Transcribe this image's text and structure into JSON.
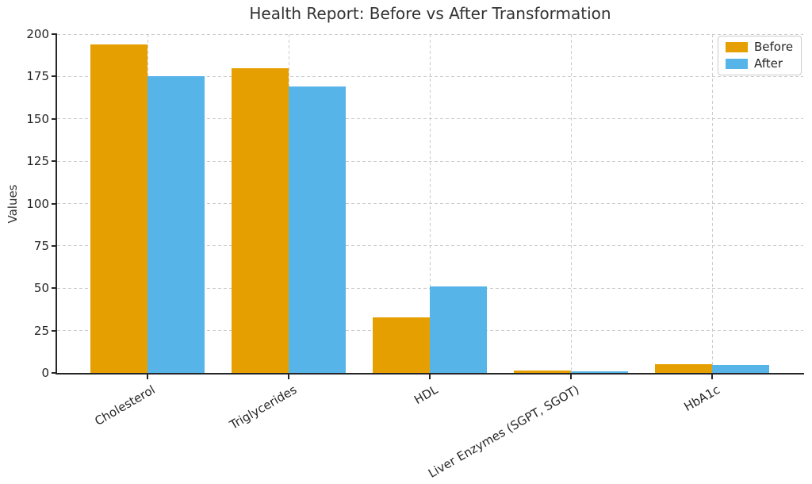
{
  "chart_data": {
    "type": "bar",
    "title": "Health Report: Before vs After Transformation",
    "xlabel": "",
    "ylabel": "Values",
    "categories": [
      "Cholesterol",
      "Triglycerides",
      "HDL",
      "Liver Enzymes (SGPT, SGOT)",
      "HbA1c"
    ],
    "series": [
      {
        "name": "Before",
        "color": "#E69F00",
        "values": [
          194,
          180,
          33,
          1.2,
          5.0
        ]
      },
      {
        "name": "After",
        "color": "#56B4E9",
        "values": [
          175,
          169,
          51,
          0.8,
          4.5
        ]
      }
    ],
    "ylim": [
      0,
      200
    ],
    "yticks": [
      0,
      25,
      50,
      75,
      100,
      125,
      150,
      175,
      200
    ],
    "grid": true,
    "grid_style": "dashed",
    "legend_position": "upper right",
    "colors": {
      "before": "#E69F00",
      "after": "#56B4E9",
      "grid": "#cccccc",
      "spine": "#262626",
      "text": "#333333"
    }
  }
}
